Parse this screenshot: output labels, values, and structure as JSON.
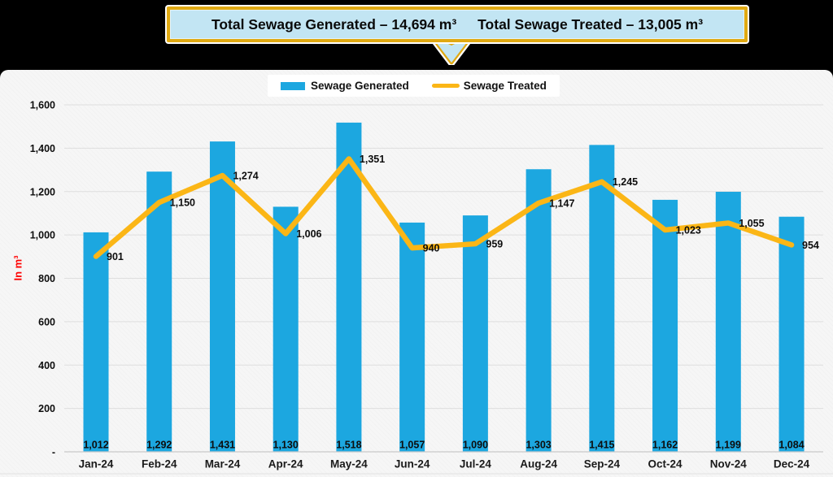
{
  "banner": {
    "generated_label": "Total Sewage Generated – 14,694 m³",
    "treated_label": "Total Sewage Treated – 13,005 m³"
  },
  "legend": {
    "generated": "Sewage Generated",
    "treated": "Sewage Treated"
  },
  "colors": {
    "bar_blue": "#1CA7E0",
    "line_yellow": "#FBB616",
    "banner_fill": "#C2E5F3",
    "banner_gold": "#E0A912",
    "card_bg": "#F5F5F5",
    "gridline": "#DEDEDE",
    "axis_line": "#C9C9C9",
    "label_text": "#0D0D0D",
    "ylabel_red": "#FF0000"
  },
  "chart_data": {
    "type": "combo-bar-line",
    "categories": [
      "Jan-24",
      "Feb-24",
      "Mar-24",
      "Apr-24",
      "May-24",
      "Jun-24",
      "Jul-24",
      "Aug-24",
      "Sep-24",
      "Oct-24",
      "Nov-24",
      "Dec-24"
    ],
    "series": [
      {
        "name": "Sewage Generated",
        "type": "bar",
        "color": "#1CA7E0",
        "values": [
          1012,
          1292,
          1431,
          1130,
          1518,
          1057,
          1090,
          1303,
          1415,
          1162,
          1199,
          1084
        ]
      },
      {
        "name": "Sewage Treated",
        "type": "line",
        "color": "#FBB616",
        "values": [
          901,
          1150,
          1274,
          1006,
          1351,
          940,
          959,
          1147,
          1245,
          1023,
          1055,
          954
        ]
      }
    ],
    "title": "",
    "xlabel": "",
    "ylabel": "In m³",
    "ylim": [
      0,
      1600
    ],
    "ytick_step": 200,
    "ytick_labels": [
      "-",
      "200",
      "400",
      "600",
      "800",
      "1,000",
      "1,200",
      "1,400",
      "1,600"
    ],
    "grid": true,
    "legend_position": "top-center",
    "data_labels": "all-points"
  }
}
